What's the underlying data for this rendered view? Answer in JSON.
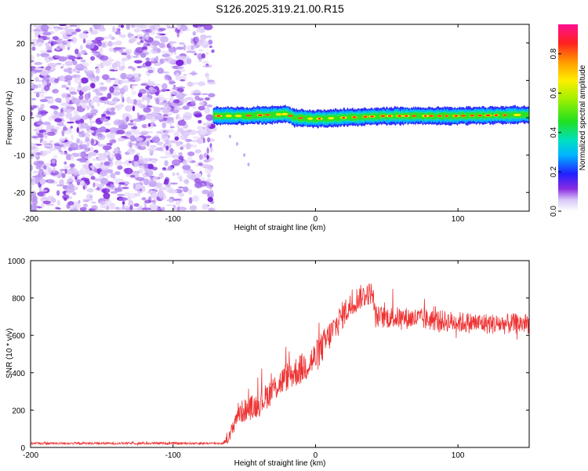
{
  "page_title": "S126.2025.319.21.00.R15",
  "chart_data": [
    {
      "type": "heatmap",
      "title": "S126.2025.319.21.00.R15",
      "xlabel": "Height of straight line (km)",
      "ylabel": "Frequency (Hz)",
      "xlim": [
        -200,
        150
      ],
      "ylim": [
        -25,
        25
      ],
      "xticks": [
        -200,
        -100,
        0,
        100
      ],
      "xtick_labels": [
        "-200",
        "-100",
        "0",
        "100"
      ],
      "yticks": [
        20,
        10,
        0,
        -10,
        -20
      ],
      "ytick_labels": [
        "20",
        "10",
        "0",
        "-10",
        "-20"
      ],
      "colorbar": {
        "label": "Normalized spectral amplitude",
        "range": [
          0,
          0.95
        ],
        "ticks": [
          0.0,
          0.2,
          0.4,
          0.6,
          0.8
        ],
        "tick_labels": [
          "0.0",
          "0.2",
          "0.4",
          "0.6",
          "0.8"
        ]
      },
      "noise_region": {
        "x": [
          -200,
          -72
        ],
        "y": [
          -25,
          25
        ],
        "amplitude": [
          0.0,
          0.12
        ]
      },
      "signal_band": {
        "x_start": -72,
        "x_end": 150,
        "center_freq_points": [
          {
            "x": -72,
            "y": 0.5
          },
          {
            "x": -50,
            "y": 0.5
          },
          {
            "x": -20,
            "y": 1.0
          },
          {
            "x": -15,
            "y": 0.0
          },
          {
            "x": 0,
            "y": -0.3
          },
          {
            "x": 50,
            "y": 0.5
          },
          {
            "x": 100,
            "y": 0.5
          },
          {
            "x": 150,
            "y": 0.8
          }
        ],
        "half_width_hz": 2.0,
        "peak_amplitude": 0.9
      },
      "wisp_points": [
        {
          "x": -60,
          "y": -5
        },
        {
          "x": -55,
          "y": -7
        },
        {
          "x": -50,
          "y": -10
        },
        {
          "x": -47,
          "y": -12.5
        }
      ]
    },
    {
      "type": "line",
      "xlabel": "Height of straight line (km)",
      "ylabel": "SNR (10 * v/v)",
      "xlim": [
        -200,
        150
      ],
      "ylim": [
        0,
        1000
      ],
      "xticks": [
        -200,
        -100,
        0,
        100
      ],
      "xtick_labels": [
        "-200",
        "-100",
        "0",
        "100"
      ],
      "yticks": [
        0,
        200,
        400,
        600,
        800,
        1000
      ],
      "ytick_labels": [
        "0",
        "200",
        "400",
        "600",
        "800",
        "1000"
      ],
      "color": "#ee3333",
      "trend": [
        {
          "x": -200,
          "y": 22
        },
        {
          "x": -65,
          "y": 22
        },
        {
          "x": -60,
          "y": 60
        },
        {
          "x": -55,
          "y": 180
        },
        {
          "x": -40,
          "y": 230
        },
        {
          "x": -30,
          "y": 310
        },
        {
          "x": -20,
          "y": 380
        },
        {
          "x": -10,
          "y": 420
        },
        {
          "x": 0,
          "y": 480
        },
        {
          "x": 10,
          "y": 600
        },
        {
          "x": 20,
          "y": 720
        },
        {
          "x": 30,
          "y": 800
        },
        {
          "x": 40,
          "y": 830
        },
        {
          "x": 42,
          "y": 700
        },
        {
          "x": 70,
          "y": 690
        },
        {
          "x": 100,
          "y": 670
        },
        {
          "x": 130,
          "y": 660
        },
        {
          "x": 150,
          "y": 665
        }
      ],
      "noise_amplitude": [
        {
          "x": -200,
          "y": 6
        },
        {
          "x": -65,
          "y": 6
        },
        {
          "x": -55,
          "y": 60
        },
        {
          "x": 0,
          "y": 90
        },
        {
          "x": 40,
          "y": 60
        },
        {
          "x": 150,
          "y": 55
        }
      ]
    }
  ]
}
